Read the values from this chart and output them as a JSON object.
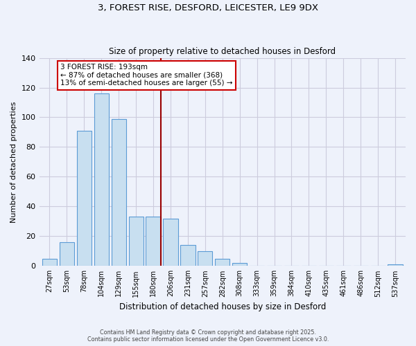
{
  "title": "3, FOREST RISE, DESFORD, LEICESTER, LE9 9DX",
  "subtitle": "Size of property relative to detached houses in Desford",
  "xlabel": "Distribution of detached houses by size in Desford",
  "ylabel": "Number of detached properties",
  "bar_labels": [
    "27sqm",
    "53sqm",
    "78sqm",
    "104sqm",
    "129sqm",
    "155sqm",
    "180sqm",
    "206sqm",
    "231sqm",
    "257sqm",
    "282sqm",
    "308sqm",
    "333sqm",
    "359sqm",
    "384sqm",
    "410sqm",
    "435sqm",
    "461sqm",
    "486sqm",
    "512sqm",
    "537sqm"
  ],
  "bar_values": [
    5,
    16,
    91,
    116,
    99,
    33,
    33,
    32,
    14,
    10,
    5,
    2,
    0,
    0,
    0,
    0,
    0,
    0,
    0,
    0,
    1
  ],
  "bar_color": "#c8dff0",
  "bar_edge_color": "#5b9bd5",
  "ylim": [
    0,
    140
  ],
  "yticks": [
    0,
    20,
    40,
    60,
    80,
    100,
    120,
    140
  ],
  "vline_x": 6.42,
  "annotation_title": "3 FOREST RISE: 193sqm",
  "annotation_line1": "← 87% of detached houses are smaller (368)",
  "annotation_line2": "13% of semi-detached houses are larger (55) →",
  "annotation_box_facecolor": "#ffffff",
  "annotation_box_edgecolor": "#cc0000",
  "vline_color": "#990000",
  "background_color": "#eef2fb",
  "grid_color": "#ccccdd",
  "footer_line1": "Contains HM Land Registry data © Crown copyright and database right 2025.",
  "footer_line2": "Contains public sector information licensed under the Open Government Licence v3.0."
}
